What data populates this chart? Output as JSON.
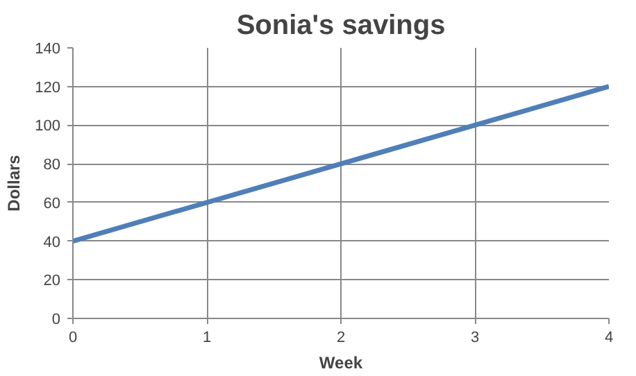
{
  "chart_data": {
    "type": "line",
    "title": "Sonia's savings",
    "xlabel": "Week",
    "ylabel": "Dollars",
    "x": [
      0,
      1,
      2,
      3,
      4
    ],
    "series": [
      {
        "color": "#4f7fb8",
        "values": [
          40,
          60,
          80,
          100,
          120
        ]
      }
    ],
    "xlim": [
      0,
      4
    ],
    "xticks": [
      0,
      1,
      2,
      3,
      4
    ],
    "ylim": [
      0,
      140
    ],
    "yticks": [
      0,
      20,
      40,
      60,
      80,
      100,
      120,
      140
    ],
    "grid": true,
    "marker": "none",
    "line_style": "solid"
  }
}
